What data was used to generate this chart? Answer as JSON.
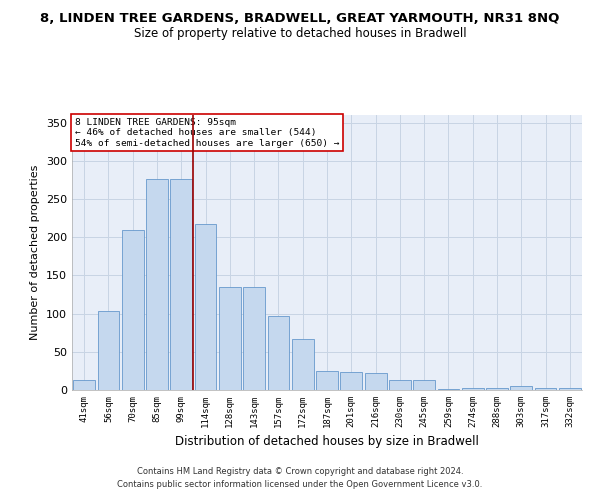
{
  "title": "8, LINDEN TREE GARDENS, BRADWELL, GREAT YARMOUTH, NR31 8NQ",
  "subtitle": "Size of property relative to detached houses in Bradwell",
  "xlabel": "Distribution of detached houses by size in Bradwell",
  "ylabel": "Number of detached properties",
  "categories": [
    "41sqm",
    "56sqm",
    "70sqm",
    "85sqm",
    "99sqm",
    "114sqm",
    "128sqm",
    "143sqm",
    "157sqm",
    "172sqm",
    "187sqm",
    "201sqm",
    "216sqm",
    "230sqm",
    "245sqm",
    "259sqm",
    "274sqm",
    "288sqm",
    "303sqm",
    "317sqm",
    "332sqm"
  ],
  "values": [
    13,
    104,
    209,
    276,
    276,
    217,
    135,
    135,
    97,
    67,
    25,
    23,
    22,
    13,
    13,
    1,
    3,
    3,
    5,
    3,
    3
  ],
  "bar_color": "#c5d8ee",
  "bar_edge_color": "#6699cc",
  "annotation_text": "8 LINDEN TREE GARDENS: 95sqm\n← 46% of detached houses are smaller (544)\n54% of semi-detached houses are larger (650) →",
  "vline_index": 4,
  "vline_color": "#990000",
  "footer1": "Contains HM Land Registry data © Crown copyright and database right 2024.",
  "footer2": "Contains public sector information licensed under the Open Government Licence v3.0.",
  "ylim": [
    0,
    360
  ],
  "yticks": [
    0,
    50,
    100,
    150,
    200,
    250,
    300,
    350
  ],
  "plot_bg_color": "#e8eef8",
  "title_fontsize": 9.5,
  "subtitle_fontsize": 8.5,
  "ylabel_fontsize": 8,
  "xlabel_fontsize": 8.5
}
